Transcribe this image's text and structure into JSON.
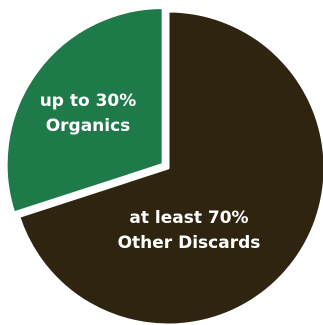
{
  "chart_data": {
    "type": "pie",
    "title": "",
    "slices": [
      {
        "key": "organics",
        "value": 30,
        "label_lines": [
          "up to 30%",
          "Organics"
        ],
        "color": "#1f7a4a"
      },
      {
        "key": "other",
        "value": 70,
        "label_lines": [
          "at least 70%",
          "Other Discards"
        ],
        "color": "#2f2410"
      }
    ],
    "edge_color": "#ffffff",
    "exploded_slice": "organics"
  }
}
